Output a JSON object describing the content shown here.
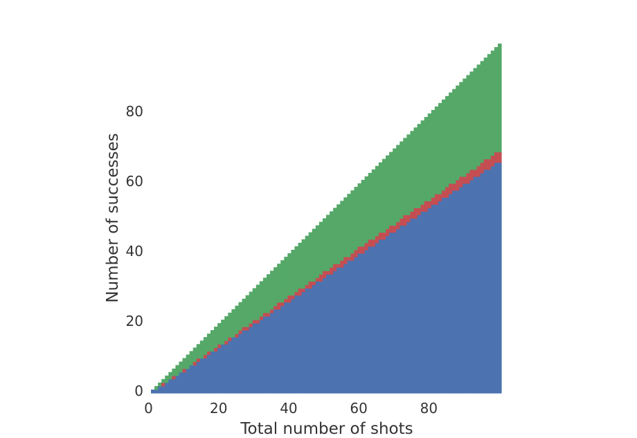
{
  "chart_data": {
    "type": "heatmap",
    "title": "",
    "xlabel": "Total number of shots",
    "ylabel": "Number of successes",
    "x_range": [
      0,
      99
    ],
    "y_range": [
      0,
      99
    ],
    "xlim": [
      0,
      100
    ],
    "ylim": [
      0,
      100
    ],
    "x_ticks": [
      0,
      20,
      40,
      60,
      80
    ],
    "y_ticks": [
      0,
      20,
      40,
      60,
      80
    ],
    "grid": false,
    "legend": "none",
    "regions": [
      {
        "color": "#4C72B0",
        "rule": "successes < 0.665 × shots",
        "upper_ratio": 0.665
      },
      {
        "color": "#C44E52",
        "rule": "0.665 × shots ≤ successes ≤ 0.695 × shots",
        "upper_ratio": 0.695
      },
      {
        "color": "#55A868",
        "rule": "0.695 × shots < successes ≤ shots",
        "upper_ratio": 1.0
      }
    ]
  }
}
